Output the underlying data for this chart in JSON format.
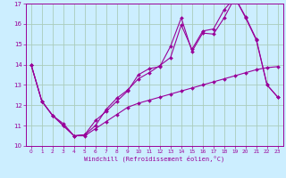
{
  "xlabel": "Windchill (Refroidissement éolien,°C)",
  "bg_color": "#cceeff",
  "line_color": "#990099",
  "grid_color": "#aaccbb",
  "xlim": [
    -0.5,
    23.5
  ],
  "ylim": [
    10,
    17
  ],
  "xticks": [
    0,
    1,
    2,
    3,
    4,
    5,
    6,
    7,
    8,
    9,
    10,
    11,
    12,
    13,
    14,
    15,
    16,
    17,
    18,
    19,
    20,
    21,
    22,
    23
  ],
  "yticks": [
    10,
    11,
    12,
    13,
    14,
    15,
    16,
    17
  ],
  "line1_x": [
    0,
    1,
    2,
    3,
    4,
    5,
    6,
    7,
    8,
    9,
    10,
    11,
    12,
    13,
    14,
    15,
    16,
    17,
    18,
    19,
    20,
    21,
    22,
    23
  ],
  "line1_y": [
    14.0,
    12.2,
    11.5,
    11.1,
    10.5,
    10.55,
    11.25,
    11.7,
    12.2,
    12.7,
    13.5,
    13.8,
    13.9,
    14.9,
    16.3,
    14.65,
    15.55,
    15.5,
    16.3,
    17.3,
    16.35,
    15.25,
    13.0,
    12.4
  ],
  "line2_x": [
    0,
    1,
    2,
    3,
    4,
    5,
    6,
    7,
    8,
    9,
    10,
    11,
    12,
    13,
    14,
    15,
    16,
    17,
    18,
    19,
    20,
    21,
    22,
    23
  ],
  "line2_y": [
    14.0,
    12.2,
    11.5,
    11.0,
    10.5,
    10.5,
    10.85,
    11.2,
    11.55,
    11.9,
    12.1,
    12.25,
    12.4,
    12.55,
    12.7,
    12.85,
    13.0,
    13.15,
    13.3,
    13.45,
    13.6,
    13.75,
    13.85,
    13.9
  ],
  "line3_x": [
    0,
    1,
    2,
    3,
    4,
    5,
    6,
    7,
    8,
    9,
    10,
    11,
    12,
    13,
    14,
    15,
    16,
    17,
    18,
    19,
    20,
    21,
    22,
    23
  ],
  "line3_y": [
    14.0,
    12.2,
    11.5,
    11.0,
    10.5,
    10.55,
    11.0,
    11.8,
    12.35,
    12.75,
    13.3,
    13.6,
    13.95,
    14.35,
    15.95,
    14.75,
    15.65,
    15.75,
    16.7,
    17.3,
    16.3,
    15.2,
    13.0,
    12.4
  ]
}
